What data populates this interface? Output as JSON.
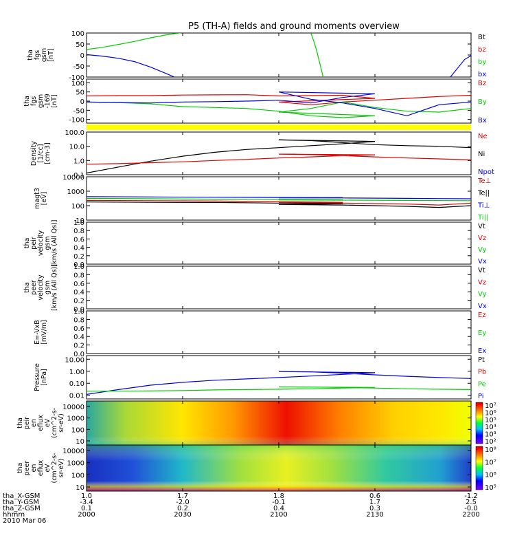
{
  "title": "P5 (TH-A) fields and ground moments overview",
  "colors": {
    "black": "#000000",
    "red": "#e00000",
    "green": "#00cc00",
    "blue": "#0000e0",
    "yellow": "#ffff00"
  },
  "chart_data": [
    {
      "id": "fgs",
      "type": "line",
      "ylabel_lines": [
        "tha",
        "fgs",
        "gsm",
        "[nT]"
      ],
      "ylim": [
        -100,
        100
      ],
      "yticks": [
        "100",
        "50",
        "0",
        "-50",
        "-100"
      ],
      "legend": [
        {
          "label": "Bt",
          "color": "black"
        },
        {
          "label": "bz",
          "color": "red"
        },
        {
          "label": "by",
          "color": "green"
        },
        {
          "label": "bx",
          "color": "blue"
        }
      ],
      "series": [
        {
          "name": "by",
          "color": "green",
          "x": [
            2000,
            2005,
            2010,
            2015,
            2020,
            2025,
            2029,
            2032,
            2034
          ],
          "y": [
            25,
            35,
            48,
            62,
            78,
            92,
            100,
            108,
            115
          ]
        },
        {
          "name": "by",
          "color": "green",
          "x": [
            2110,
            2111,
            2112,
            2113,
            2114
          ],
          "y": [
            100,
            60,
            10,
            -50,
            -110
          ]
        },
        {
          "name": "by",
          "color": "green",
          "x": [
            2187,
            2189,
            2191,
            2193,
            2196,
            2200
          ],
          "y": [
            -110,
            -55,
            -30,
            -5,
            30,
            75
          ]
        },
        {
          "name": "bx",
          "color": "blue",
          "x": [
            2000,
            2005,
            2010,
            2015,
            2020,
            2025,
            2029
          ],
          "y": [
            2,
            -5,
            -15,
            -30,
            -55,
            -85,
            -110
          ]
        },
        {
          "name": "bx",
          "color": "blue",
          "x": [
            2153,
            2158,
            2165,
            2172,
            2178,
            2182
          ],
          "y": [
            -110,
            -20,
            40,
            80,
            100,
            112
          ]
        },
        {
          "name": "bx",
          "color": "blue",
          "x": [
            2183,
            2184,
            2186,
            2190,
            2195,
            2200
          ],
          "y": [
            110,
            50,
            30,
            15,
            5,
            -5
          ]
        },
        {
          "name": "bz",
          "color": "red",
          "x": [
            2190,
            2200
          ],
          "y": [
            70,
            100
          ]
        }
      ]
    },
    {
      "id": "fgl",
      "type": "line",
      "ylabel_lines": [
        "tha",
        "fgs",
        "gsm",
        "-169",
        "[nT]"
      ],
      "ylim": [
        -120,
        120
      ],
      "yticks": [
        "100",
        "50",
        "0",
        "-50",
        "-100"
      ],
      "legend": [
        {
          "label": "Bz",
          "color": "red"
        },
        {
          "label": "By",
          "color": "green"
        },
        {
          "label": "Bx",
          "color": "blue"
        }
      ],
      "series": [
        {
          "name": "Bz",
          "color": "red",
          "x": [
            2000,
            2010,
            2020,
            2030,
            2040,
            2050,
            2060,
            2070,
            2080,
            2090,
            2100,
            2110,
            2120,
            2130,
            2140,
            2150,
            2160,
            2170,
            2180,
            2190,
            2200
          ],
          "y": [
            28,
            30,
            30,
            33,
            34,
            35,
            28,
            30,
            32,
            15,
            -5,
            -20,
            -5,
            5,
            15,
            25,
            32,
            35,
            38,
            40,
            40
          ]
        },
        {
          "name": "By",
          "color": "green",
          "x": [
            2000,
            2010,
            2020,
            2030,
            2040,
            2050,
            2060,
            2070,
            2080,
            2090,
            2100,
            2110,
            2120,
            2130,
            2140,
            2150,
            2160,
            2170,
            2180,
            2190,
            2200
          ],
          "y": [
            -5,
            -8,
            -15,
            -30,
            -35,
            -40,
            -55,
            -80,
            -90,
            -80,
            -60,
            -40,
            -5,
            -35,
            -55,
            -60,
            -40,
            -25,
            -15,
            -8,
            -5
          ]
        },
        {
          "name": "Bx",
          "color": "blue",
          "x": [
            2000,
            2010,
            2020,
            2030,
            2040,
            2050,
            2060,
            2070,
            2080,
            2090,
            2100,
            2110,
            2120,
            2130,
            2140,
            2150,
            2160,
            2170,
            2180,
            2190,
            2200
          ],
          "y": [
            -5,
            -8,
            -10,
            -5,
            -3,
            0,
            5,
            -10,
            20,
            40,
            50,
            10,
            -10,
            -40,
            -80,
            -20,
            -5,
            -5,
            0,
            -5,
            -5
          ]
        }
      ]
    },
    {
      "id": "density",
      "type": "line",
      "ylabel_lines": [
        "Density",
        "[1/cc]",
        "[cm-3]"
      ],
      "scale": "log",
      "ylim": [
        0.1,
        100
      ],
      "yticks": [
        "100.0",
        "10.0",
        "1.0",
        "0.1"
      ],
      "legend": [
        {
          "label": "Ne",
          "color": "red"
        },
        {
          "label": "Ni",
          "color": "black"
        },
        {
          "label": "Npot",
          "color": "blue"
        }
      ],
      "series": [
        {
          "name": "Ni",
          "color": "black",
          "x": [
            2000,
            2010,
            2020,
            2030,
            2040,
            2050,
            2060,
            2070,
            2080,
            2090,
            2100,
            2110,
            2120,
            2130,
            2140,
            2150,
            2160,
            2170,
            2180,
            2190,
            2200
          ],
          "y": [
            0.13,
            0.35,
            0.9,
            2,
            3.8,
            6,
            8,
            11,
            15,
            22,
            28,
            25,
            18,
            13,
            11,
            10,
            8,
            5,
            3,
            1.6,
            1.2
          ]
        },
        {
          "name": "Ne",
          "color": "red",
          "x": [
            2000,
            2010,
            2020,
            2030,
            2040,
            2050,
            2060,
            2070,
            2080,
            2090,
            2100,
            2110,
            2120,
            2130,
            2140,
            2150,
            2160,
            2170,
            2180,
            2190,
            2200
          ],
          "y": [
            0.55,
            0.6,
            0.7,
            0.8,
            1,
            1.2,
            1.5,
            1.8,
            2.2,
            2.5,
            2.8,
            2.6,
            2.2,
            1.8,
            1.5,
            1.3,
            1.1,
            0.8,
            0.5,
            0.3,
            0.18
          ]
        }
      ]
    },
    {
      "id": "magt3",
      "type": "line",
      "ylabel_lines": [
        "magt3",
        "[eV]"
      ],
      "scale": "log",
      "ylim": [
        10,
        10000
      ],
      "yticks": [
        "10000",
        "1000",
        "100",
        "10"
      ],
      "legend": [
        {
          "label": "Te⊥",
          "color": "red"
        },
        {
          "label": "Te||",
          "color": "black"
        },
        {
          "label": "Ti⊥",
          "color": "blue"
        },
        {
          "label": "Ti||",
          "color": "green"
        }
      ],
      "series": [
        {
          "name": "Ti⊥",
          "color": "blue",
          "x": [
            2000,
            2020,
            2040,
            2060,
            2080,
            2100,
            2120,
            2140,
            2160,
            2180,
            2200
          ],
          "y": [
            420,
            400,
            380,
            370,
            360,
            350,
            340,
            320,
            300,
            330,
            360
          ]
        },
        {
          "name": "Ti||",
          "color": "green",
          "x": [
            2000,
            2020,
            2040,
            2060,
            2080,
            2100,
            2120,
            2140,
            2160,
            2180,
            2200
          ],
          "y": [
            320,
            300,
            280,
            270,
            260,
            250,
            240,
            230,
            220,
            250,
            280
          ]
        },
        {
          "name": "Te⊥",
          "color": "red",
          "x": [
            2000,
            2020,
            2040,
            2060,
            2080,
            2100,
            2120,
            2140,
            2150,
            2160,
            2170,
            2180,
            2190,
            2200
          ],
          "y": [
            230,
            220,
            210,
            190,
            170,
            160,
            150,
            130,
            110,
            150,
            250,
            450,
            800,
            1100
          ]
        },
        {
          "name": "Te||",
          "color": "black",
          "x": [
            2000,
            2020,
            2040,
            2060,
            2080,
            2100,
            2120,
            2140,
            2150,
            2160,
            2170,
            2180,
            2190,
            2200
          ],
          "y": [
            180,
            170,
            165,
            150,
            135,
            120,
            110,
            90,
            75,
            100,
            200,
            400,
            600,
            800
          ]
        }
      ]
    },
    {
      "id": "peir",
      "type": "line",
      "ylabel_lines": [
        "tha",
        "peir",
        "velocity",
        "gsm",
        "[km/s (All Qs)]"
      ],
      "ylim": [
        0,
        1
      ],
      "yticks": [
        "1.0",
        "0.8",
        "0.6",
        "0.4",
        "0.2",
        "0.0"
      ],
      "legend": [
        {
          "label": "Vt",
          "color": "black"
        },
        {
          "label": "Vz",
          "color": "red"
        },
        {
          "label": "Vy",
          "color": "green"
        },
        {
          "label": "Vx",
          "color": "blue"
        }
      ],
      "series": []
    },
    {
      "id": "peer",
      "type": "line",
      "ylabel_lines": [
        "tha",
        "peer",
        "velocity",
        "gsm",
        "[km/s (All Qs)]"
      ],
      "ylim": [
        0,
        1
      ],
      "yticks": [
        "1.0",
        "0.8",
        "0.6",
        "0.4",
        "0.2",
        "0.0"
      ],
      "legend": [
        {
          "label": "Vt",
          "color": "black"
        },
        {
          "label": "Vz",
          "color": "red"
        },
        {
          "label": "Vy",
          "color": "green"
        },
        {
          "label": "Vx",
          "color": "blue"
        }
      ],
      "series": []
    },
    {
      "id": "efield",
      "type": "line",
      "ylabel_lines": [
        "E=-VxB",
        "[mV/m]"
      ],
      "ylim": [
        0,
        1
      ],
      "yticks": [
        "1.0",
        "0.8",
        "0.6",
        "0.4",
        "0.2",
        "0.0"
      ],
      "legend": [
        {
          "label": "Ez",
          "color": "red"
        },
        {
          "label": "Ey",
          "color": "green"
        },
        {
          "label": "Ex",
          "color": "blue"
        }
      ],
      "series": []
    },
    {
      "id": "pressure",
      "type": "line",
      "ylabel_lines": [
        "Pressure",
        "[nPa]"
      ],
      "scale": "log",
      "ylim": [
        0.005,
        20
      ],
      "yticks": [
        "10.00",
        "1.00",
        "0.10",
        "0.01"
      ],
      "legend": [
        {
          "label": "Pt",
          "color": "black"
        },
        {
          "label": "Pb",
          "color": "red"
        },
        {
          "label": "Pe",
          "color": "green"
        },
        {
          "label": "Pi",
          "color": "blue"
        }
      ],
      "series": [
        {
          "name": "Pi",
          "color": "blue",
          "x": [
            2000,
            2010,
            2020,
            2030,
            2040,
            2050,
            2060,
            2070,
            2080,
            2090,
            2100,
            2110,
            2120,
            2130,
            2140,
            2150,
            2160,
            2170,
            2180,
            2190,
            2200
          ],
          "y": [
            0.012,
            0.03,
            0.07,
            0.12,
            0.18,
            0.23,
            0.3,
            0.4,
            0.55,
            0.75,
            0.95,
            0.9,
            0.7,
            0.5,
            0.38,
            0.3,
            0.25,
            0.2,
            0.15,
            0.12,
            0.09
          ]
        },
        {
          "name": "Pe",
          "color": "green",
          "x": [
            2000,
            2010,
            2020,
            2030,
            2040,
            2050,
            2060,
            2070,
            2080,
            2090,
            2100,
            2110,
            2120,
            2130,
            2140,
            2150,
            2160,
            2170,
            2180,
            2190,
            2200
          ],
          "y": [
            0.022,
            0.022,
            0.023,
            0.025,
            0.028,
            0.03,
            0.032,
            0.035,
            0.04,
            0.045,
            0.05,
            0.048,
            0.045,
            0.04,
            0.035,
            0.032,
            0.03,
            0.027,
            0.025,
            0.022,
            0.02
          ]
        }
      ]
    },
    {
      "id": "peir_spec",
      "type": "heatmap",
      "ylabel_lines": [
        "tha",
        "peir",
        "en",
        "eflux",
        "eV",
        "(cm^2-s-",
        "sr-eV)"
      ],
      "yticks": [
        "10000",
        "1000",
        "100",
        "10"
      ],
      "colorbar_ticks": [
        "10⁷",
        "10⁶",
        "10⁵",
        "10⁴",
        "10³",
        "10²"
      ]
    },
    {
      "id": "peer_spec",
      "type": "heatmap",
      "ylabel_lines": [
        "tha",
        "peer",
        "en",
        "eflux",
        "eV",
        "(cm^2-s-",
        "sr-eV)"
      ],
      "yticks": [
        "10000",
        "1000",
        "100",
        "10"
      ],
      "colorbar_ticks": [
        "10⁸",
        "10⁷",
        "10⁶",
        "10⁵"
      ]
    }
  ],
  "x_axis": {
    "ticks": [
      2000,
      2030,
      2100,
      2130,
      2200
    ],
    "rows": [
      {
        "label": "tha_X-GSM",
        "values": [
          "1.0",
          "1.7",
          "1.8",
          "0.6",
          "-1.2"
        ]
      },
      {
        "label": "tha_Y-GSM",
        "values": [
          "-3.4",
          "-2.0",
          "-0.1",
          "1.7",
          "2.5"
        ]
      },
      {
        "label": "tha_Z-GSM",
        "values": [
          "0.1",
          "0.2",
          "0.4",
          "0.3",
          "-0.0"
        ]
      },
      {
        "label": "hhmm",
        "values": [
          "2000",
          "2030",
          "2100",
          "2130",
          "2200"
        ]
      }
    ],
    "date": "2010 Mar 06"
  }
}
